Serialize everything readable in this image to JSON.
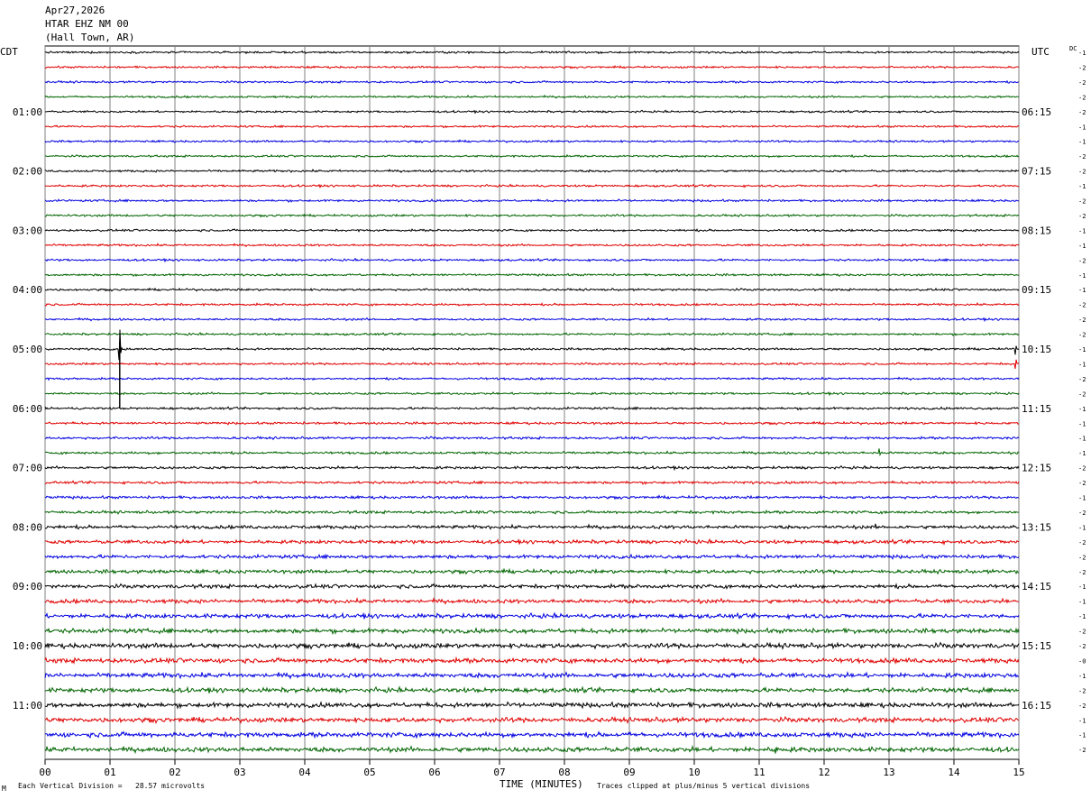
{
  "header": {
    "date": "Apr27,2026",
    "station": "HTAR EHZ NM 00",
    "location": "(Hall Town, AR)"
  },
  "footer": {
    "scale_note": "Each Vertical Division =   28.57 microvolts",
    "clip_note": "Traces clipped at plus/minus 5 vertical divisions",
    "corner_mark": "M"
  },
  "chart_data": {
    "type": "line",
    "title": "HTAR EHZ NM 00",
    "xlabel": "TIME (MINUTES)",
    "left_axis_label": "CDT",
    "right_axis_label": "UTC",
    "dc_label": "DC",
    "xlim": [
      0,
      15
    ],
    "x_ticks": [
      "00",
      "01",
      "02",
      "03",
      "04",
      "05",
      "06",
      "07",
      "08",
      "09",
      "10",
      "11",
      "12",
      "13",
      "14",
      "15"
    ],
    "trace_minutes": 15,
    "trace_count": 48,
    "trace_colors": [
      "#000000",
      "#e00000",
      "#0000e0",
      "#006400"
    ],
    "left_hour_labels": [
      "01:00",
      "02:00",
      "03:00",
      "04:00",
      "05:00",
      "06:00",
      "07:00",
      "08:00",
      "09:00",
      "10:00",
      "11:00"
    ],
    "right_hour_labels": [
      "06:15",
      "07:15",
      "08:15",
      "09:15",
      "10:15",
      "11:15",
      "12:15",
      "13:15",
      "14:15",
      "15:15",
      "16:15"
    ],
    "hour_label_trace_indices": [
      4,
      8,
      12,
      16,
      20,
      24,
      28,
      32,
      36,
      40,
      44
    ],
    "dc_offsets": [
      "-1",
      "-2",
      "-2",
      "-2",
      "-2",
      "-1",
      "-1",
      "-2",
      "-2",
      "-1",
      "-2",
      "-2",
      "-1",
      "-1",
      "-2",
      "-1",
      "-1",
      "-2",
      "-2",
      "-2",
      "-1",
      "-1",
      "-2",
      "-2",
      "-1",
      "-1",
      "-1",
      "-1",
      "-2",
      "-2",
      "-1",
      "-2",
      "-1",
      "-2",
      "-2",
      "-2",
      "-1",
      "-1",
      "-1",
      "-2",
      "-2",
      "-0",
      "-1",
      "-2",
      "-2",
      "-1",
      "-1",
      "-2"
    ],
    "noise_divisions": [
      0.14,
      0.14,
      0.14,
      0.14,
      0.14,
      0.14,
      0.14,
      0.14,
      0.15,
      0.15,
      0.15,
      0.15,
      0.15,
      0.15,
      0.15,
      0.15,
      0.15,
      0.15,
      0.15,
      0.15,
      0.15,
      0.15,
      0.15,
      0.15,
      0.16,
      0.16,
      0.17,
      0.17,
      0.18,
      0.18,
      0.19,
      0.2,
      0.24,
      0.25,
      0.25,
      0.26,
      0.27,
      0.28,
      0.3,
      0.31,
      0.34,
      0.33,
      0.33,
      0.32,
      0.33,
      0.33,
      0.34,
      0.34
    ],
    "events": [
      {
        "trace": 20,
        "minute": 1.15,
        "amplitude_divisions": 5.0,
        "label": "clipped event"
      },
      {
        "trace": 20,
        "minute": 14.95,
        "amplitude_divisions": 1.6,
        "label": "spike"
      },
      {
        "trace": 21,
        "minute": 14.95,
        "amplitude_divisions": 1.4,
        "label": "spike"
      },
      {
        "trace": 27,
        "minute": 12.85,
        "amplitude_divisions": 1.2,
        "label": "spike"
      },
      {
        "trace": 32,
        "minute": 12.8,
        "amplitude_divisions": 1.0,
        "label": "spike"
      },
      {
        "trace": 47,
        "minute": 11.25,
        "amplitude_divisions": 0.8,
        "label": "spike"
      }
    ]
  }
}
